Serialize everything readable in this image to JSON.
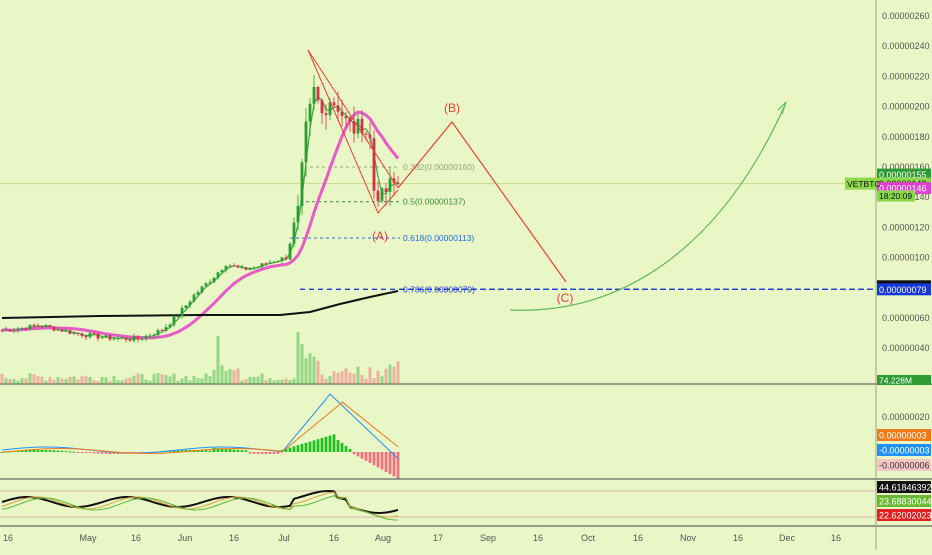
{
  "theme": {
    "background": "#e9f6c6",
    "axis_text": "#555555",
    "candle_up": "#2e9c33",
    "candle_down": "#d9304a",
    "ma_pink": "#e65bc8",
    "ma_black": "#111111",
    "ma_green": "#3ea83e",
    "projection_red": "#e8403a",
    "projection_green": "#5cb85c",
    "fib_blue": "#1e6fe0",
    "stoch_k": "#111111",
    "stoch_d": "#d9a23a"
  },
  "chart_data": [
    {
      "type": "candlestick",
      "panel": "price",
      "symbol": "VETBTC",
      "countdown": "18:20:09",
      "volume_label": "74.228M",
      "y_range": [
        2.5e-07,
        2.65e-06
      ],
      "y_ticks": [
        "0.00000260",
        "0.00000240",
        "0.00000220",
        "0.00000200",
        "0.00000180",
        "0.00000160",
        "0.00000140",
        "0.00000120",
        "0.00000100",
        "0.00000080",
        "0.00000060",
        "0.00000040"
      ],
      "x_ticks": [
        "16",
        "May",
        "16",
        "Jun",
        "16",
        "Jul",
        "16",
        "Aug",
        "17",
        "Sep",
        "16",
        "Oct",
        "16",
        "Nov",
        "16",
        "Dec",
        "16"
      ],
      "price_labels": [
        {
          "text": "0.00000155",
          "value": 1.55e-06,
          "color": "#2e9c33"
        },
        {
          "text": "0.00000149",
          "value": 1.49e-06,
          "color": "#8bd94a"
        },
        {
          "text": "0.00000146",
          "value": 1.46e-06,
          "color": "#e040d0"
        },
        {
          "text": "0.00000081",
          "value": 8.1e-07,
          "color": "#111111"
        },
        {
          "text": "0.00000079",
          "value": 7.9e-07,
          "color": "#1438d8"
        }
      ],
      "fibonacci": [
        {
          "level": "0.382",
          "price": "0.00000160",
          "value": 1.6e-06
        },
        {
          "level": "0.5",
          "price": "0.00000137",
          "value": 1.37e-06
        },
        {
          "level": "0.618",
          "price": "0.00000113",
          "value": 1.13e-06
        },
        {
          "level": "0.786",
          "price": "0.00000079",
          "value": 7.9e-07
        }
      ],
      "wave_labels": [
        "(A)",
        "(B)",
        "(C)"
      ]
    },
    {
      "type": "macd",
      "panel": "macd",
      "y_ticks": [
        "0.00000020"
      ],
      "labels": [
        {
          "text": "0.00000003",
          "color": "#f07a1a"
        },
        {
          "text": "-0.00000003",
          "color": "#1e90ff"
        },
        {
          "text": "-0.00000006",
          "color": "#f6c6c6"
        }
      ]
    },
    {
      "type": "stochastic_rsi",
      "panel": "stoch",
      "labels": [
        {
          "text": "44.61846392",
          "color": "#111111"
        },
        {
          "text": "23.68830044",
          "color": "#6ab82f"
        },
        {
          "text": "22.62002023",
          "color": "#e02020"
        }
      ]
    }
  ]
}
